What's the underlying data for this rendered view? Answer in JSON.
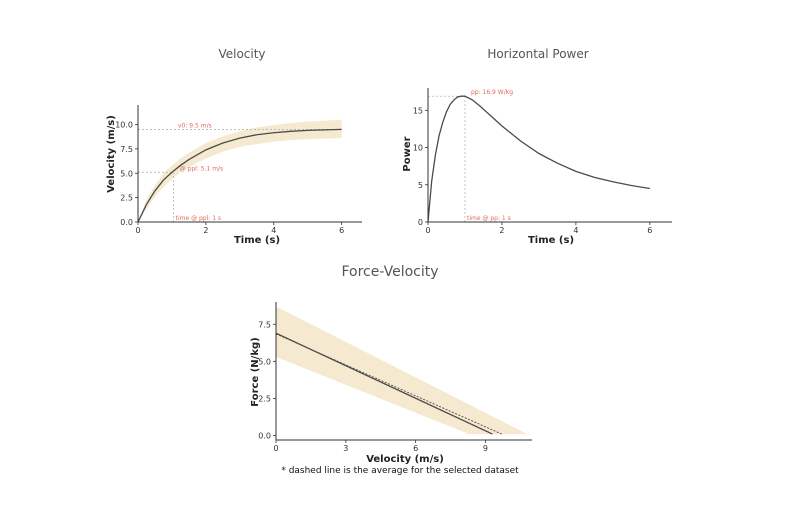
{
  "chart_data": [
    {
      "type": "line",
      "title": "Velocity",
      "xlabel": "Time (s)",
      "ylabel": "Velocity (m/s)",
      "xlim": [
        0,
        6.6
      ],
      "ylim": [
        0,
        12
      ],
      "xticks": [
        0,
        2,
        4,
        6
      ],
      "xtick_labels": [
        "0",
        "2",
        "4",
        "6"
      ],
      "yticks": [
        0,
        2.5,
        5,
        7.5,
        10
      ],
      "ytick_labels": [
        "0.0",
        "2.5",
        "5.0",
        "7.5",
        "10.0"
      ],
      "series": [
        {
          "x": [
            0,
            0.25,
            0.5,
            0.75,
            1,
            1.25,
            1.5,
            1.75,
            2,
            2.5,
            3,
            3.5,
            4,
            4.5,
            5,
            5.5,
            6
          ],
          "y": [
            0,
            1.8,
            3.2,
            4.3,
            5.1,
            5.8,
            6.4,
            6.9,
            7.4,
            8.1,
            8.6,
            8.95,
            9.15,
            9.3,
            9.4,
            9.45,
            9.5
          ],
          "band_low": [
            0,
            1.3,
            2.6,
            3.6,
            4.4,
            5.1,
            5.6,
            6.1,
            6.5,
            7.2,
            7.7,
            8.0,
            8.25,
            8.4,
            8.5,
            8.55,
            8.6
          ],
          "band_high": [
            0,
            2.3,
            3.8,
            5.0,
            5.8,
            6.5,
            7.1,
            7.6,
            8.1,
            8.8,
            9.3,
            9.7,
            9.95,
            10.15,
            10.3,
            10.4,
            10.5
          ]
        }
      ],
      "annotations": [
        {
          "text": "v0:  9.5 m/s",
          "x": 0,
          "y": 9.5,
          "line": "horizontal",
          "x_end": 6
        },
        {
          "text": "@ ppl:  5.1 m/s",
          "x": 1.05,
          "y": 5.1,
          "line": "horizontal",
          "x_start": 0
        },
        {
          "text": "time @ ppl:  1 s",
          "x": 1.05,
          "y": 0,
          "line": "vertical",
          "y_end": 5.1
        }
      ]
    },
    {
      "type": "line",
      "title": "Horizontal Power",
      "xlabel": "Time (s)",
      "ylabel": "Power",
      "xlim": [
        0,
        6.6
      ],
      "ylim": [
        0,
        18
      ],
      "xticks": [
        0,
        2,
        4,
        6
      ],
      "xtick_labels": [
        "0",
        "2",
        "4",
        "6"
      ],
      "yticks": [
        0,
        5,
        10,
        15
      ],
      "ytick_labels": [
        "0",
        "5",
        "10",
        "15"
      ],
      "series": [
        {
          "x": [
            0,
            0.1,
            0.2,
            0.3,
            0.4,
            0.5,
            0.6,
            0.7,
            0.8,
            0.9,
            1.0,
            1.2,
            1.4,
            1.6,
            1.8,
            2.0,
            2.5,
            3.0,
            3.5,
            4.0,
            4.5,
            5.0,
            5.5,
            6.0
          ],
          "y": [
            0,
            5.5,
            9.0,
            11.6,
            13.4,
            14.8,
            15.8,
            16.4,
            16.8,
            16.9,
            16.9,
            16.4,
            15.6,
            14.7,
            13.8,
            12.9,
            10.9,
            9.2,
            7.9,
            6.8,
            6.0,
            5.4,
            4.9,
            4.5
          ]
        }
      ],
      "annotations": [
        {
          "text": "pp:  16.9 W/kg",
          "x": 1.0,
          "y": 16.9,
          "line": "horizontal",
          "x_start": 0
        },
        {
          "text": "time @ pp:  1 s",
          "x": 1.0,
          "y": 0,
          "line": "vertical",
          "y_end": 16.9
        }
      ]
    },
    {
      "type": "line",
      "title": "Force-Velocity",
      "xlabel": "Velocity (m/s)",
      "ylabel": "Force (N/kg)",
      "xlim": [
        0,
        11
      ],
      "ylim": [
        -0.3,
        9
      ],
      "xticks": [
        0,
        3,
        6,
        9
      ],
      "xtick_labels": [
        "0",
        "3",
        "6",
        "9"
      ],
      "yticks": [
        0,
        2.5,
        5,
        7.5
      ],
      "ytick_labels": [
        "0.0",
        "2.5",
        "5.0",
        "7.5"
      ],
      "series": [
        {
          "x": [
            0,
            9.3
          ],
          "y": [
            6.9,
            0.1
          ]
        },
        {
          "x": [
            0,
            9.7
          ],
          "y": [
            6.85,
            0.1
          ],
          "style": "dashed"
        }
      ],
      "band_polygon": [
        [
          0,
          8.7
        ],
        [
          10.8,
          0.1
        ],
        [
          8.3,
          0.1
        ],
        [
          0,
          5.3
        ]
      ],
      "footnote": "* dashed line is the average for the selected dataset"
    }
  ]
}
